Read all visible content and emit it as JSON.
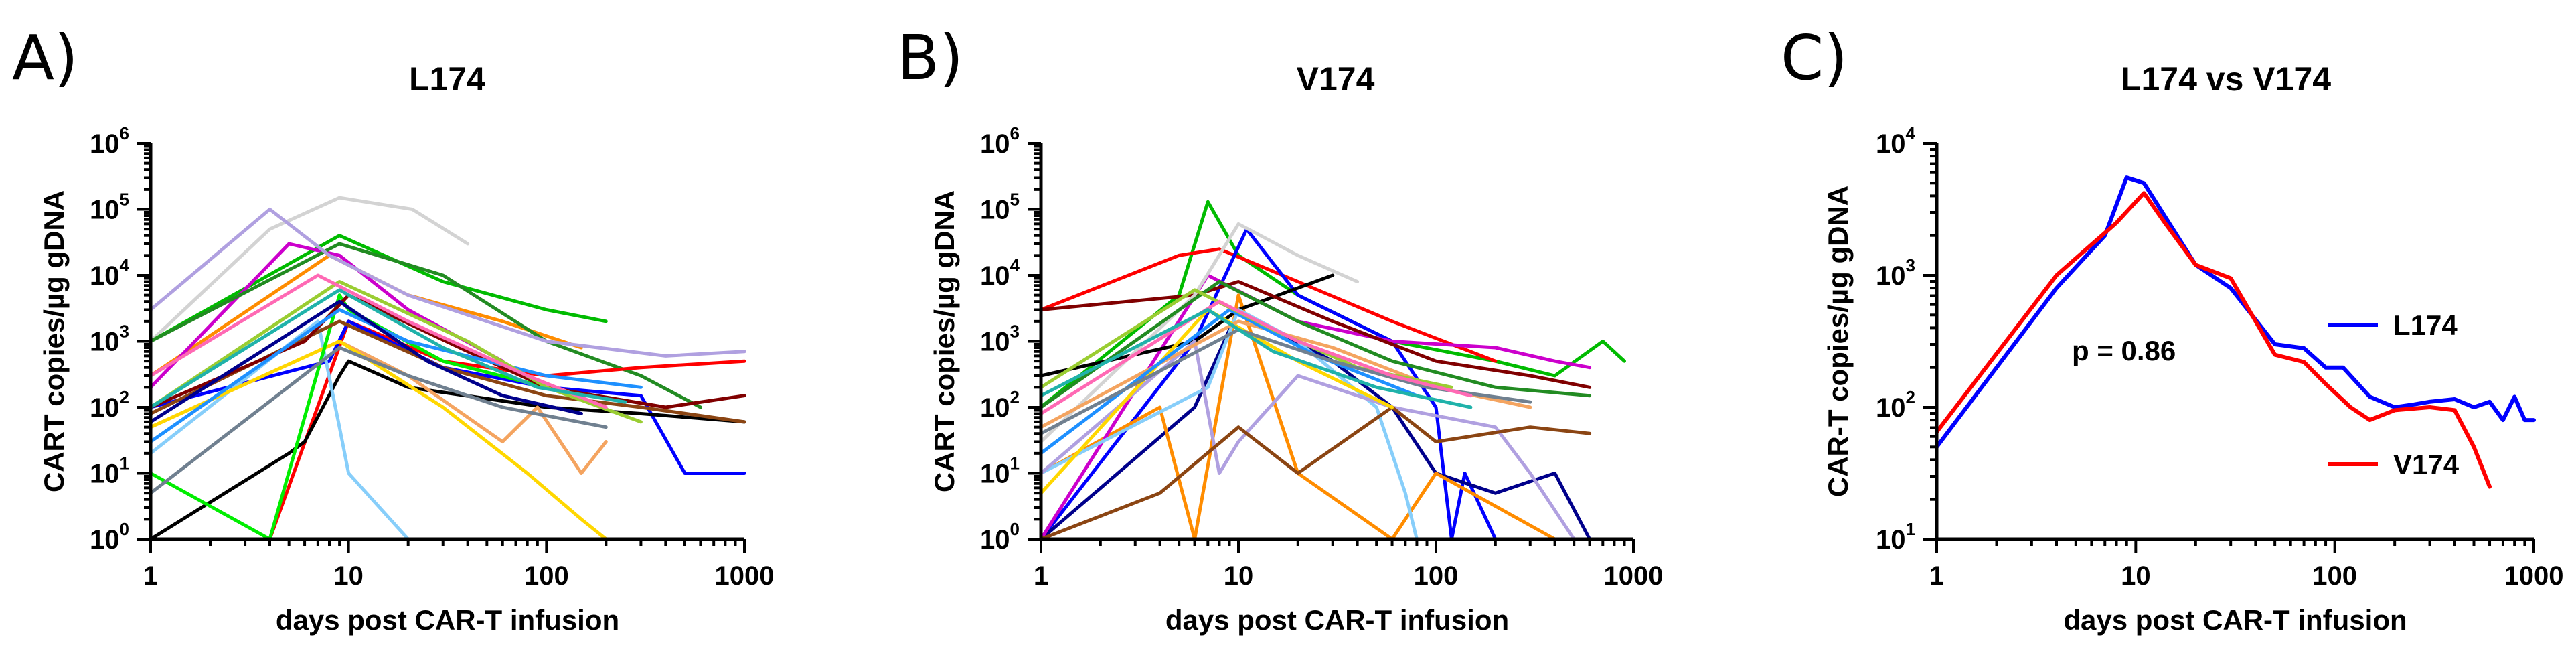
{
  "chart_data": [
    {
      "panel": "A)",
      "type": "line",
      "title": "L174",
      "xlabel": "days post CAR-T infusion",
      "ylabel": "CART copies/µg gDNA",
      "xscale": "log",
      "yscale": "log",
      "xlim": [
        1,
        1000
      ],
      "ylim": [
        1,
        1000000
      ],
      "xticks": [
        {
          "v": 1,
          "base": "1",
          "exp": ""
        },
        {
          "v": 10,
          "base": "10",
          "exp": ""
        },
        {
          "v": 100,
          "base": "100",
          "exp": ""
        },
        {
          "v": 1000,
          "base": "1000",
          "exp": ""
        }
      ],
      "yticks": [
        {
          "v": 1,
          "base": "10",
          "exp": "0"
        },
        {
          "v": 10,
          "base": "10",
          "exp": "1"
        },
        {
          "v": 100,
          "base": "10",
          "exp": "2"
        },
        {
          "v": 1000,
          "base": "10",
          "exp": "3"
        },
        {
          "v": 10000,
          "base": "10",
          "exp": "4"
        },
        {
          "v": 100000,
          "base": "10",
          "exp": "5"
        },
        {
          "v": 1000000,
          "base": "10",
          "exp": "6"
        }
      ],
      "series": [
        {
          "color": "#d3d3d3",
          "x": [
            1,
            4,
            9,
            21,
            40
          ],
          "y": [
            1000,
            50000,
            150000,
            100000,
            30000
          ]
        },
        {
          "color": "#00bb00",
          "x": [
            1,
            9,
            30,
            100,
            200
          ],
          "y": [
            1000,
            40000,
            8000,
            3000,
            2000
          ]
        },
        {
          "color": "#ff8c00",
          "x": [
            1,
            8,
            20,
            60,
            150
          ],
          "y": [
            300,
            20000,
            5000,
            2000,
            800
          ]
        },
        {
          "color": "#cc00cc",
          "x": [
            1,
            5,
            9,
            20,
            60
          ],
          "y": [
            200,
            30000,
            20000,
            3000,
            500
          ]
        },
        {
          "color": "#228b22",
          "x": [
            1,
            9,
            30,
            100,
            300,
            600
          ],
          "y": [
            1000,
            30000,
            10000,
            1000,
            300,
            100
          ]
        },
        {
          "color": "#ff0000",
          "x": [
            1,
            4,
            10,
            30,
            100,
            300,
            1000
          ],
          "y": [
            1,
            1,
            2000,
            500,
            300,
            400,
            500
          ]
        },
        {
          "color": "#0000ff",
          "x": [
            1,
            8,
            10,
            30,
            100,
            300,
            500,
            1000
          ],
          "y": [
            100,
            500,
            2000,
            400,
            200,
            150,
            10,
            10
          ]
        },
        {
          "color": "#000000",
          "x": [
            1,
            5,
            6,
            9,
            10,
            20,
            100,
            300,
            1000
          ],
          "y": [
            1,
            20,
            30,
            300,
            500,
            200,
            100,
            80,
            60
          ]
        },
        {
          "color": "#87cefa",
          "x": [
            1,
            7,
            9,
            10,
            20,
            60
          ],
          "y": [
            20,
            2000,
            50,
            10,
            1,
            1
          ]
        },
        {
          "color": "#f4a460",
          "x": [
            1,
            9,
            20,
            60,
            90,
            150,
            200
          ],
          "y": [
            50,
            1000,
            300,
            30,
            100,
            10,
            30
          ]
        },
        {
          "color": "#ffd700",
          "x": [
            1,
            9,
            30,
            80,
            150,
            200,
            600
          ],
          "y": [
            50,
            1000,
            100,
            10,
            2,
            1,
            1
          ]
        },
        {
          "color": "#00ee00",
          "x": [
            1,
            4,
            9,
            10,
            30,
            100
          ],
          "y": [
            10,
            1,
            5000,
            3000,
            500,
            200
          ]
        },
        {
          "color": "#708090",
          "x": [
            1,
            9,
            20,
            60,
            200
          ],
          "y": [
            5,
            800,
            300,
            100,
            50
          ]
        },
        {
          "color": "#8b4513",
          "x": [
            1,
            9,
            30,
            100,
            300,
            1000
          ],
          "y": [
            80,
            2000,
            400,
            150,
            100,
            60
          ]
        },
        {
          "color": "#800000",
          "x": [
            1,
            6,
            10,
            40,
            100,
            400,
            1000
          ],
          "y": [
            100,
            1000,
            5000,
            700,
            200,
            100,
            150
          ]
        },
        {
          "color": "#b0a0e0",
          "x": [
            1,
            4,
            8,
            20,
            100,
            400,
            1000
          ],
          "y": [
            3000,
            100000,
            20000,
            5000,
            1000,
            600,
            700
          ]
        },
        {
          "color": "#1e90ff",
          "x": [
            1,
            9,
            20,
            100,
            300
          ],
          "y": [
            30,
            3000,
            1000,
            300,
            200
          ]
        },
        {
          "color": "#9acd32",
          "x": [
            1,
            9,
            40,
            100,
            300
          ],
          "y": [
            100,
            8000,
            1000,
            200,
            60
          ]
        },
        {
          "color": "#ff69b4",
          "x": [
            1,
            7,
            20,
            80,
            200
          ],
          "y": [
            300,
            10000,
            2000,
            300,
            100
          ]
        },
        {
          "color": "#00008b",
          "x": [
            1,
            9,
            25,
            60,
            150
          ],
          "y": [
            60,
            4000,
            500,
            150,
            80
          ]
        },
        {
          "color": "#20b2aa",
          "x": [
            1,
            9,
            30,
            90,
            250
          ],
          "y": [
            100,
            6000,
            800,
            200,
            120
          ]
        }
      ]
    },
    {
      "panel": "B)",
      "type": "line",
      "title": "V174",
      "xlabel": "days post CAR-T infusion",
      "ylabel": "CART copies/µg gDNA",
      "xscale": "log",
      "yscale": "log",
      "xlim": [
        1,
        1000
      ],
      "ylim": [
        1,
        1000000
      ],
      "xticks": [
        {
          "v": 1,
          "base": "1",
          "exp": ""
        },
        {
          "v": 10,
          "base": "10",
          "exp": ""
        },
        {
          "v": 100,
          "base": "100",
          "exp": ""
        },
        {
          "v": 1000,
          "base": "1000",
          "exp": ""
        }
      ],
      "yticks": [
        {
          "v": 1,
          "base": "10",
          "exp": "0"
        },
        {
          "v": 10,
          "base": "10",
          "exp": "1"
        },
        {
          "v": 100,
          "base": "10",
          "exp": "2"
        },
        {
          "v": 1000,
          "base": "10",
          "exp": "3"
        },
        {
          "v": 10000,
          "base": "10",
          "exp": "4"
        },
        {
          "v": 100000,
          "base": "10",
          "exp": "5"
        },
        {
          "v": 1000000,
          "base": "10",
          "exp": "6"
        }
      ],
      "series": [
        {
          "color": "#00bb00",
          "x": [
            1,
            5,
            7,
            10,
            20,
            60,
            200,
            400,
            700,
            900
          ],
          "y": [
            100,
            5000,
            130000,
            20000,
            5000,
            1000,
            500,
            300,
            1000,
            500
          ]
        },
        {
          "color": "#ff0000",
          "x": [
            1,
            5,
            8,
            20,
            60,
            200
          ],
          "y": [
            3000,
            20000,
            25000,
            8000,
            2000,
            500
          ]
        },
        {
          "color": "#0000ff",
          "x": [
            1,
            6,
            11,
            20,
            60,
            100,
            120,
            140,
            200
          ],
          "y": [
            1,
            1000,
            50000,
            5000,
            1000,
            100,
            1,
            10,
            1
          ]
        },
        {
          "color": "#00008b",
          "x": [
            1,
            6,
            10,
            30,
            60,
            100,
            200,
            400,
            600
          ],
          "y": [
            1,
            100,
            3000,
            500,
            100,
            10,
            5,
            10,
            1
          ]
        },
        {
          "color": "#ff8c00",
          "x": [
            1,
            4,
            6,
            10,
            20,
            60,
            100,
            400,
            700
          ],
          "y": [
            10,
            100,
            1,
            5000,
            10,
            1,
            10,
            1,
            1
          ]
        },
        {
          "color": "#cc00cc",
          "x": [
            1,
            7,
            20,
            60,
            200,
            400,
            600
          ],
          "y": [
            1,
            10000,
            2000,
            1000,
            800,
            500,
            400
          ]
        },
        {
          "color": "#000000",
          "x": [
            1,
            6,
            10,
            30
          ],
          "y": [
            300,
            1000,
            3000,
            10000
          ]
        },
        {
          "color": "#800000",
          "x": [
            1,
            6,
            10,
            30,
            100,
            300,
            600
          ],
          "y": [
            3000,
            5000,
            8000,
            2000,
            500,
            300,
            200
          ]
        },
        {
          "color": "#d3d3d3",
          "x": [
            1,
            6,
            10,
            20,
            40
          ],
          "y": [
            30,
            5000,
            60000,
            20000,
            8000
          ]
        },
        {
          "color": "#87cefa",
          "x": [
            1,
            7,
            10,
            20,
            50,
            70,
            80
          ],
          "y": [
            10,
            200,
            3000,
            1000,
            100,
            5,
            1
          ]
        },
        {
          "color": "#b0a0e0",
          "x": [
            1,
            6,
            8,
            10,
            20,
            60,
            200,
            300,
            500
          ],
          "y": [
            10,
            1000,
            10,
            30,
            300,
            100,
            50,
            10,
            1
          ]
        },
        {
          "color": "#8b4513",
          "x": [
            1,
            4,
            10,
            20,
            60,
            100,
            300,
            600
          ],
          "y": [
            1,
            5,
            50,
            10,
            100,
            30,
            50,
            40
          ]
        },
        {
          "color": "#228b22",
          "x": [
            1,
            8,
            20,
            60,
            200,
            600
          ],
          "y": [
            100,
            8000,
            2000,
            500,
            200,
            150
          ]
        },
        {
          "color": "#ffd700",
          "x": [
            1,
            7,
            20,
            60
          ],
          "y": [
            5,
            3000,
            500,
            100
          ]
        },
        {
          "color": "#f4a460",
          "x": [
            1,
            10,
            30,
            100,
            300
          ],
          "y": [
            50,
            2000,
            800,
            200,
            100
          ]
        },
        {
          "color": "#1e90ff",
          "x": [
            1,
            9,
            25,
            80
          ],
          "y": [
            20,
            3000,
            600,
            150
          ]
        },
        {
          "color": "#9acd32",
          "x": [
            1,
            6,
            15,
            40,
            120
          ],
          "y": [
            200,
            6000,
            1500,
            400,
            200
          ]
        },
        {
          "color": "#708090",
          "x": [
            1,
            10,
            30,
            90,
            300
          ],
          "y": [
            40,
            1500,
            500,
            200,
            120
          ]
        },
        {
          "color": "#ff69b4",
          "x": [
            1,
            8,
            20,
            60,
            150
          ],
          "y": [
            80,
            4000,
            1000,
            300,
            150
          ]
        },
        {
          "color": "#20b2aa",
          "x": [
            1,
            7,
            15,
            50,
            150
          ],
          "y": [
            150,
            3000,
            700,
            200,
            100
          ]
        }
      ]
    },
    {
      "panel": "C)",
      "type": "line",
      "title": "L174 vs V174",
      "xlabel": "days post CAR-T infusion",
      "ylabel": "CAR-T copies/µg gDNA",
      "xscale": "log",
      "yscale": "log",
      "xlim": [
        1,
        1000
      ],
      "ylim": [
        10,
        10000
      ],
      "xticks": [
        {
          "v": 1,
          "base": "1",
          "exp": ""
        },
        {
          "v": 10,
          "base": "10",
          "exp": ""
        },
        {
          "v": 100,
          "base": "100",
          "exp": ""
        },
        {
          "v": 1000,
          "base": "1000",
          "exp": ""
        }
      ],
      "yticks": [
        {
          "v": 10,
          "base": "10",
          "exp": "1"
        },
        {
          "v": 100,
          "base": "10",
          "exp": "2"
        },
        {
          "v": 1000,
          "base": "10",
          "exp": "3"
        },
        {
          "v": 10000,
          "base": "10",
          "exp": "4"
        }
      ],
      "annotation": "p = 0.86",
      "series": [
        {
          "name": "L174",
          "color": "#0000ff",
          "x": [
            1,
            4,
            7,
            9,
            11,
            14,
            20,
            30,
            50,
            70,
            90,
            110,
            150,
            200,
            250,
            300,
            400,
            500,
            600,
            700,
            800,
            900,
            1000
          ],
          "y": [
            50,
            800,
            2000,
            5500,
            5000,
            2800,
            1200,
            800,
            300,
            280,
            200,
            200,
            120,
            100,
            105,
            110,
            115,
            100,
            110,
            80,
            120,
            80,
            80
          ]
        },
        {
          "name": "V174",
          "color": "#ff0000",
          "x": [
            1,
            4,
            8,
            11,
            14,
            20,
            30,
            50,
            70,
            90,
            120,
            150,
            200,
            300,
            400,
            500,
            600
          ],
          "y": [
            65,
            1000,
            2500,
            4200,
            2500,
            1200,
            950,
            250,
            220,
            150,
            100,
            80,
            95,
            100,
            95,
            50,
            25
          ]
        }
      ]
    }
  ]
}
